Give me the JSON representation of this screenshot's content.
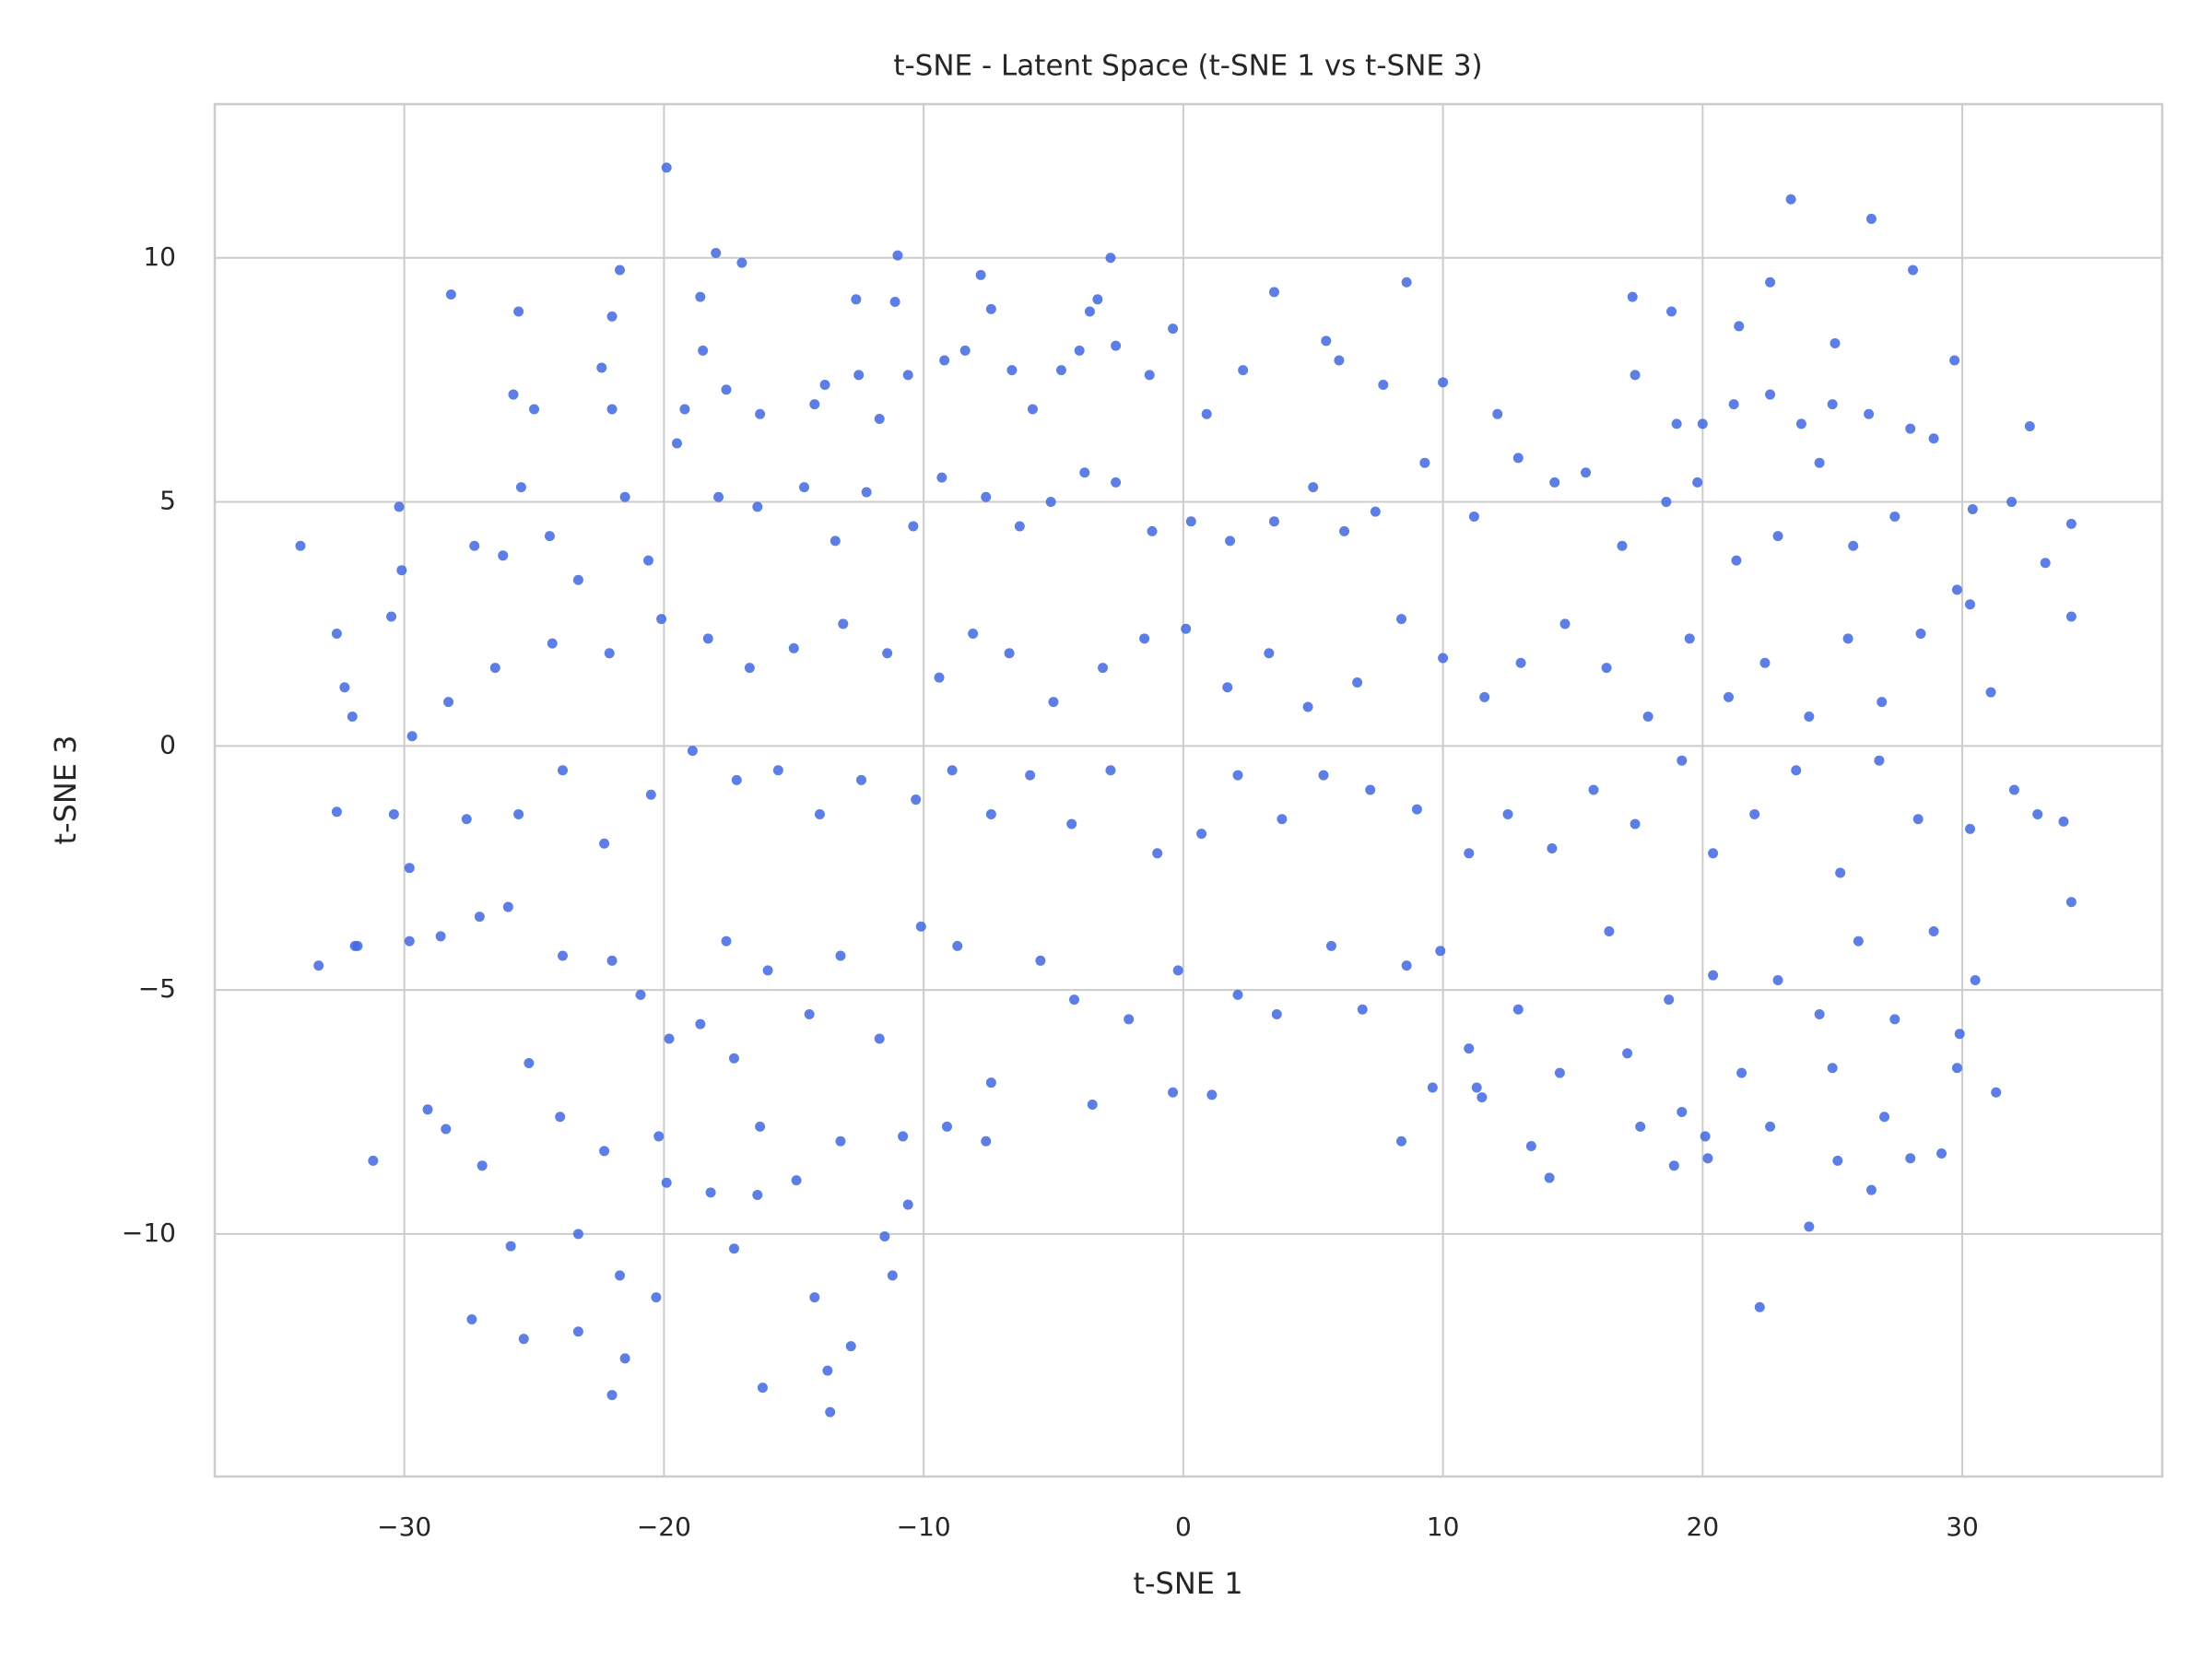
{
  "chart_data": {
    "type": "scatter",
    "title": "t-SNE - Latent Space (t-SNE 1 vs t-SNE 3)",
    "x_label": "t-SNE 1",
    "y_label": "t-SNE 3",
    "color": "#4169e1",
    "grid": true,
    "xlim": [
      -37.3,
      37.7
    ],
    "ylim": [
      -14.97,
      13.15
    ],
    "xticks": [
      {
        "value": -30,
        "label": "−30"
      },
      {
        "value": -20,
        "label": "−20"
      },
      {
        "value": -10,
        "label": "−10"
      },
      0,
      10,
      20,
      30
    ],
    "yticks": [
      {
        "value": -10,
        "label": "−10"
      },
      {
        "value": -5,
        "label": "−5"
      },
      0,
      5,
      10
    ],
    "x": [
      -19.9,
      23.4,
      26.5,
      -18.0,
      -17.0,
      -11.0,
      -2.8,
      -21.7,
      -28.2,
      3.5,
      8.6,
      28.1,
      22.6,
      18.8,
      17.3,
      -25.6,
      -22.0,
      -18.6,
      -12.6,
      -11.1,
      -7.8,
      -3.3,
      -3.6,
      21.4,
      25.1,
      29.7,
      32.6,
      -34.0,
      -32.6,
      -32.3,
      -30.2,
      -30.5,
      34.2,
      34.2,
      33.2,
      33.9,
      34.2,
      31.3,
      29.2,
      28.0,
      26.5,
      24.1,
      22.2,
      14.1,
      -33.3,
      -32.6,
      -31.8,
      -31.2,
      -29.1,
      -28.4,
      -27.4,
      -25.9,
      -25.4,
      -23.3,
      -23.3,
      -22.0,
      -21.5,
      -21.7,
      -20.3,
      -19.9,
      -17.3,
      -16.2,
      -13.7,
      -13.6,
      -12.8,
      -14.2,
      -11.5,
      -11.2,
      -10.6,
      -16.4,
      -18.2,
      -3.5,
      -0.4,
      1.1,
      13.4,
      11.5,
      8.4,
      17.6,
      18.9,
      20.2,
      25.2,
      22.6,
      -25.8,
      -25.0,
      -22.4,
      -22.0,
      -19.2,
      -18.5,
      -17.6,
      -16.3,
      -14.2,
      -13.8,
      -12.5,
      -11.7,
      -10.6,
      -9.2,
      -8.4,
      -7.4,
      -6.6,
      -5.8,
      -4.7,
      -4.0,
      -2.6,
      -1.3,
      -0.4,
      0.9,
      2.3,
      5.5,
      6.0,
      7.7,
      10.0,
      12.1,
      17.4,
      19.0,
      20.0,
      21.2,
      22.6,
      23.8,
      25.0,
      26.4,
      28.0,
      28.9,
      -30.1,
      -27.3,
      -26.2,
      -25.5,
      -24.4,
      -23.3,
      -21.5,
      -20.6,
      -19.5,
      -17.9,
      -16.4,
      -14.6,
      -13.4,
      -12.2,
      -10.4,
      -9.3,
      -7.6,
      -6.3,
      -5.1,
      -3.8,
      -2.6,
      -1.2,
      0.3,
      1.8,
      3.5,
      5.0,
      6.2,
      7.4,
      9.3,
      11.2,
      12.9,
      14.3,
      15.5,
      16.9,
      18.6,
      19.8,
      21.3,
      22.9,
      24.5,
      25.8,
      27.4,
      29.8,
      30.4,
      31.9,
      -32.0,
      -29.7,
      -28.3,
      -26.5,
      -24.3,
      -22.1,
      -20.1,
      -18.3,
      -16.7,
      -15.0,
      -13.1,
      -11.4,
      -9.4,
      -8.1,
      -6.7,
      -5.0,
      -3.1,
      -1.5,
      0.1,
      1.7,
      3.3,
      4.8,
      6.7,
      8.4,
      10.0,
      11.6,
      13.0,
      14.7,
      16.3,
      17.9,
      19.5,
      21.0,
      22.4,
      24.1,
      25.6,
      26.9,
      28.4,
      30.3,
      31.1,
      -30.4,
      -29.8,
      -27.6,
      -25.6,
      -23.9,
      -22.3,
      -20.5,
      -18.9,
      -17.2,
      -15.6,
      -14.0,
      -12.4,
      -10.3,
      -8.9,
      -7.4,
      -5.9,
      -4.3,
      -2.8,
      -1.0,
      0.7,
      2.1,
      3.8,
      5.4,
      7.2,
      9.0,
      11.0,
      12.5,
      14.2,
      15.8,
      17.4,
      19.2,
      20.4,
      22.0,
      23.6,
      25.3,
      26.8,
      28.3,
      30.3,
      32.0,
      32.9,
      -31.9,
      -29.8,
      -28.6,
      -27.1,
      -26.0,
      -25.2,
      -23.9,
      -22.0,
      -20.9,
      -19.8,
      -18.6,
      -17.6,
      -16.0,
      -14.4,
      -13.2,
      -11.7,
      -10.1,
      -8.7,
      -7.4,
      -5.5,
      -4.2,
      -2.1,
      -0.2,
      2.1,
      3.6,
      5.7,
      6.9,
      8.6,
      9.9,
      11.0,
      12.9,
      14.5,
      16.4,
      17.1,
      18.7,
      20.4,
      21.5,
      22.9,
      24.5,
      26.0,
      27.4,
      28.9,
      29.9,
      30.5,
      -27.0,
      -24.0,
      -22.3,
      -20.2,
      -17.3,
      -16.3,
      -14.9,
      -13.2,
      -10.8,
      -9.1,
      -7.6,
      9.6,
      11.3,
      19.2,
      20.1,
      25.0,
      27.0,
      29.8
    ],
    "values": [
      11.85,
      11.2,
      10.8,
      10.1,
      9.9,
      10.05,
      10.0,
      9.75,
      9.25,
      9.3,
      9.5,
      9.75,
      9.5,
      8.9,
      9.2,
      8.9,
      8.8,
      9.2,
      9.15,
      9.1,
      9.65,
      9.15,
      8.9,
      8.6,
      8.25,
      7.9,
      6.55,
      4.1,
      2.3,
      1.2,
      4.9,
      2.65,
      4.55,
      2.65,
      3.75,
      -1.55,
      -3.2,
      -7.1,
      -8.35,
      -8.45,
      -9.1,
      -9.85,
      -11.5,
      -8.85,
      -4.5,
      -1.35,
      -4.1,
      -8.5,
      -7.45,
      -7.85,
      -11.75,
      -10.25,
      -12.15,
      -10.0,
      -12.0,
      -13.3,
      -12.55,
      -10.85,
      -11.3,
      -8.95,
      -10.3,
      -13.15,
      -12.8,
      -13.65,
      -12.3,
      -11.3,
      -10.05,
      -10.85,
      -9.4,
      -9.2,
      -9.15,
      -7.35,
      -7.1,
      -7.15,
      -8.2,
      -7.2,
      -8.1,
      -7.8,
      -8.6,
      -8.45,
      -8.5,
      -7.8,
      7.2,
      6.9,
      7.75,
      6.9,
      6.9,
      8.1,
      7.3,
      6.8,
      7.0,
      7.4,
      7.6,
      6.7,
      7.6,
      7.9,
      8.1,
      8.95,
      7.7,
      6.9,
      7.7,
      8.1,
      8.2,
      7.6,
      8.55,
      6.8,
      7.7,
      8.3,
      7.9,
      7.4,
      7.45,
      6.8,
      7.6,
      6.6,
      6.6,
      7.0,
      7.2,
      6.6,
      7.0,
      6.8,
      6.5,
      6.3,
      3.6,
      4.1,
      3.9,
      5.3,
      4.3,
      3.4,
      5.1,
      3.8,
      6.2,
      5.1,
      4.9,
      5.3,
      4.2,
      5.2,
      4.5,
      5.5,
      5.1,
      4.5,
      5.0,
      5.6,
      5.4,
      4.4,
      4.6,
      4.2,
      4.6,
      5.3,
      4.4,
      4.8,
      5.8,
      4.7,
      5.9,
      5.4,
      5.6,
      4.1,
      5.0,
      5.4,
      3.8,
      4.3,
      5.8,
      4.1,
      4.7,
      3.2,
      4.85,
      5.0,
      0.6,
      0.2,
      0.9,
      1.6,
      2.1,
      1.9,
      2.6,
      2.2,
      1.6,
      2.0,
      2.5,
      1.9,
      1.4,
      2.3,
      1.9,
      0.9,
      1.6,
      2.2,
      2.4,
      1.2,
      1.9,
      0.8,
      1.3,
      2.6,
      1.8,
      1.0,
      1.7,
      2.5,
      1.6,
      0.6,
      2.2,
      1.0,
      1.7,
      0.6,
      2.2,
      0.9,
      2.3,
      2.9,
      1.1,
      -1.4,
      -2.5,
      -1.5,
      -1.4,
      -0.5,
      -2.0,
      -1.0,
      -0.1,
      -0.7,
      -0.5,
      -1.4,
      -0.7,
      -1.1,
      -0.5,
      -1.4,
      -0.6,
      -1.6,
      -0.5,
      -2.2,
      -1.8,
      -0.6,
      -1.5,
      -0.6,
      -0.9,
      -1.3,
      -2.2,
      -1.4,
      -2.1,
      -0.9,
      -1.6,
      -0.3,
      -2.2,
      -1.4,
      -0.5,
      -2.6,
      -0.3,
      -1.5,
      -1.7,
      -0.9,
      -1.4,
      -4.1,
      -4.0,
      -3.9,
      -3.5,
      -3.3,
      -6.5,
      -4.3,
      -4.4,
      -5.1,
      -6.0,
      -5.7,
      -4.0,
      -4.6,
      -5.5,
      -4.3,
      -6.0,
      -3.7,
      -4.1,
      -6.9,
      -4.4,
      -5.2,
      -5.6,
      -4.6,
      -5.1,
      -5.5,
      -4.1,
      -5.4,
      -4.5,
      -4.2,
      -6.2,
      -5.4,
      -6.7,
      -3.8,
      -6.3,
      -5.2,
      -4.7,
      -6.7,
      -4.8,
      -5.5,
      -4.0,
      -5.6,
      -3.8,
      -5.9,
      -4.8,
      -8.6,
      -7.6,
      -8.3,
      -8.0,
      -6.4,
      -7.8,
      -8.9,
      -8.1,
      -8.0,
      -7.8,
      -8.1,
      -7.0,
      -7.0,
      -7.5,
      -8.0,
      -6.6,
      -7.6,
      -6.6
    ]
  }
}
